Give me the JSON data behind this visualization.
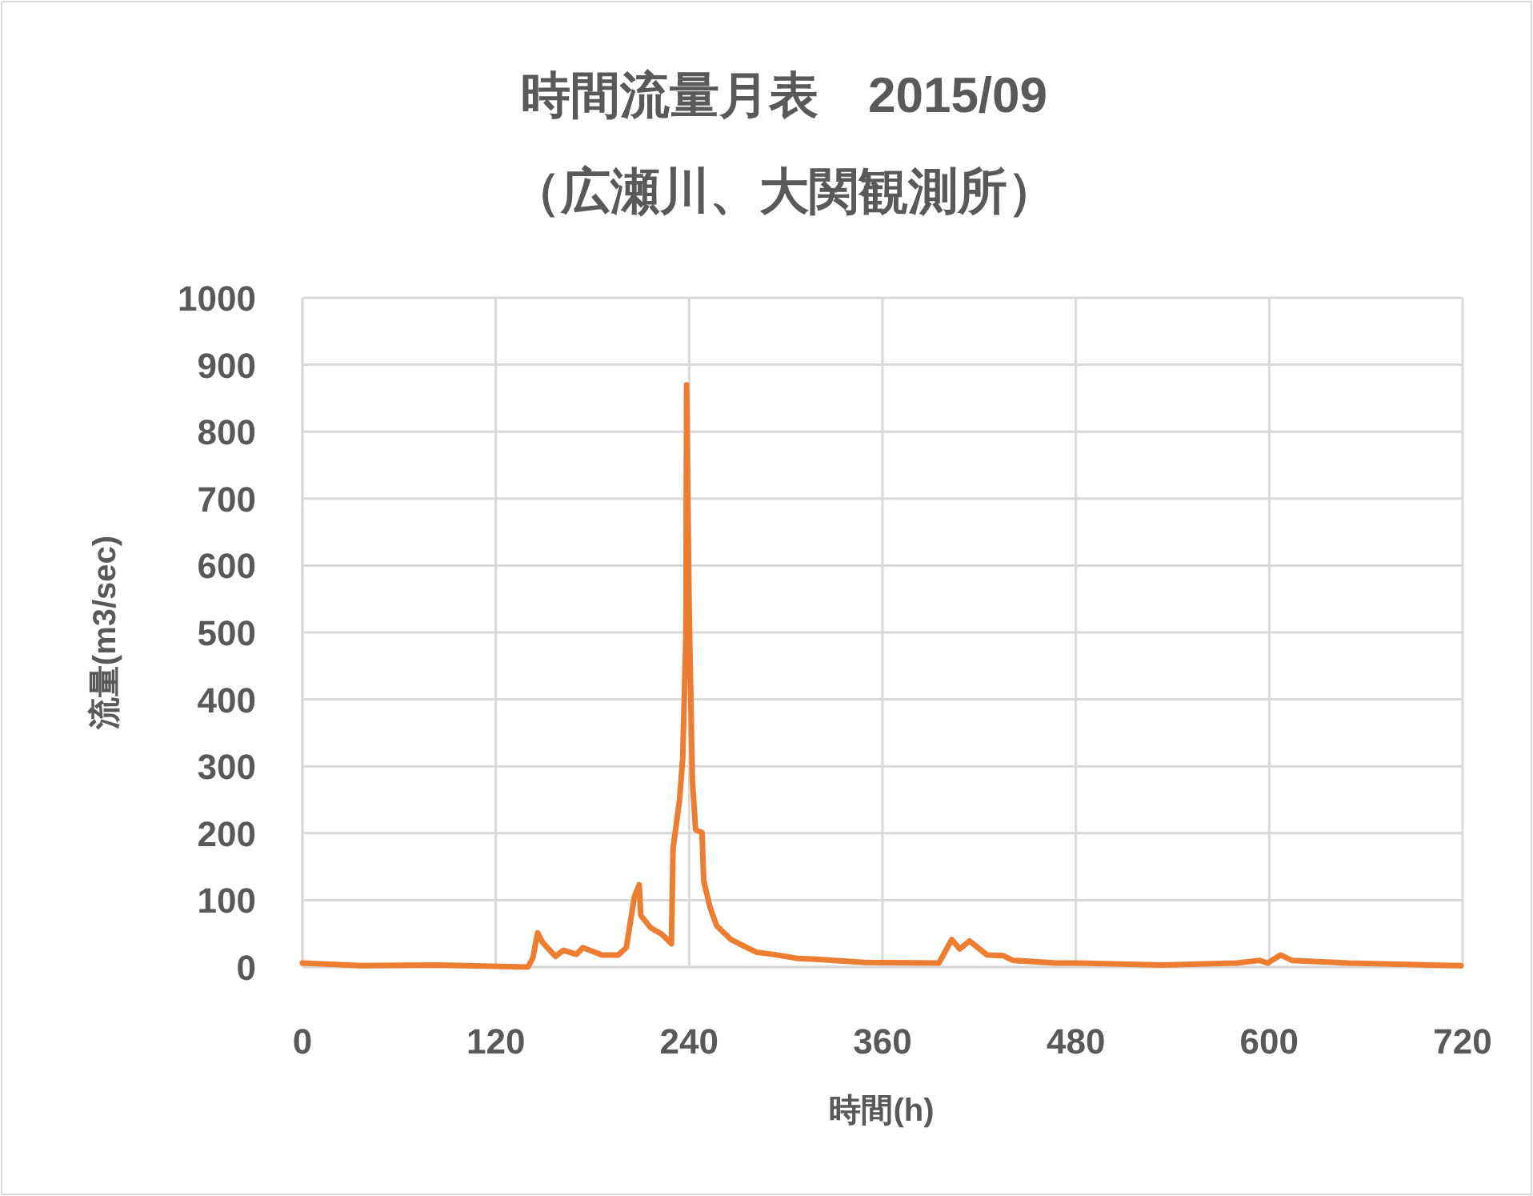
{
  "chart_data": {
    "type": "line",
    "title": "時間流量月表　2015/09",
    "subtitle": "（広瀬川、大関観測所）",
    "xlabel": "時間(h)",
    "ylabel": "流量(m3/sec)",
    "xlim": [
      0,
      720
    ],
    "xticks": [
      0,
      120,
      240,
      360,
      480,
      600,
      720
    ],
    "ylim": [
      0,
      1000
    ],
    "yticks": [
      0,
      100,
      200,
      300,
      400,
      500,
      600,
      700,
      800,
      900,
      1000
    ],
    "grid": true,
    "series": [
      {
        "color": "#ed7d31",
        "x": [
          0,
          37,
          84,
          140,
          143,
          146,
          149,
          157,
          162,
          170,
          174,
          186,
          196,
          201,
          206,
          209,
          210,
          216,
          223,
          229,
          230,
          234,
          236,
          238,
          238.4,
          240,
          242,
          244,
          248,
          249,
          253,
          257,
          266,
          276,
          282,
          292,
          307,
          316,
          349,
          395,
          403,
          408,
          414,
          425,
          435,
          441,
          468,
          481,
          534,
          580,
          594,
          599,
          607,
          614,
          649,
          699,
          719
        ],
        "values": [
          6,
          2,
          3,
          0,
          14,
          51,
          37,
          16,
          25,
          19,
          29,
          18,
          18,
          29,
          105,
          123,
          77,
          59,
          49,
          35,
          177,
          249,
          312,
          496,
          870,
          535,
          280,
          205,
          201,
          129,
          89,
          62,
          41,
          29,
          22,
          19,
          13,
          12,
          7,
          6,
          41,
          27,
          39,
          18,
          17,
          10,
          6,
          6,
          3,
          6,
          10,
          6,
          18,
          10,
          6,
          3,
          2
        ]
      }
    ]
  }
}
